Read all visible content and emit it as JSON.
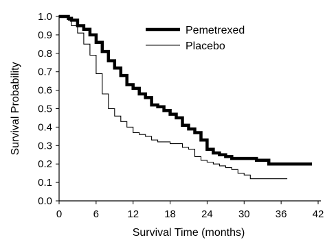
{
  "chart_data": {
    "type": "line",
    "title": "",
    "xlabel": "Survival Time (months)",
    "ylabel": "Survival Probability",
    "xlim": [
      0,
      42
    ],
    "ylim": [
      0,
      1.0
    ],
    "x_ticks": [
      "0",
      "6",
      "12",
      "18",
      "24",
      "30",
      "36",
      "42"
    ],
    "y_ticks": [
      "0.0",
      "0.1",
      "0.2",
      "0.3",
      "0.4",
      "0.5",
      "0.6",
      "0.7",
      "0.8",
      "0.9",
      "1.0"
    ],
    "grid": false,
    "legend_position": "top-right",
    "step": true,
    "series": [
      {
        "name": "Pemetrexed",
        "color": "#000000",
        "style": "thick",
        "points": [
          [
            0,
            1.0
          ],
          [
            1,
            1.0
          ],
          [
            1.5,
            0.99
          ],
          [
            2,
            0.98
          ],
          [
            3,
            0.95
          ],
          [
            4,
            0.93
          ],
          [
            5,
            0.9
          ],
          [
            6,
            0.86
          ],
          [
            7,
            0.81
          ],
          [
            8,
            0.76
          ],
          [
            9,
            0.72
          ],
          [
            10,
            0.68
          ],
          [
            11,
            0.63
          ],
          [
            12,
            0.61
          ],
          [
            13,
            0.58
          ],
          [
            14,
            0.56
          ],
          [
            15,
            0.52
          ],
          [
            16,
            0.51
          ],
          [
            17,
            0.49
          ],
          [
            18,
            0.47
          ],
          [
            19,
            0.45
          ],
          [
            20,
            0.41
          ],
          [
            21,
            0.39
          ],
          [
            22,
            0.37
          ],
          [
            23,
            0.33
          ],
          [
            24,
            0.28
          ],
          [
            25,
            0.26
          ],
          [
            26,
            0.25
          ],
          [
            27,
            0.24
          ],
          [
            28,
            0.23
          ],
          [
            30,
            0.23
          ],
          [
            32,
            0.22
          ],
          [
            34,
            0.2
          ],
          [
            36,
            0.2
          ],
          [
            38,
            0.2
          ],
          [
            40,
            0.2
          ],
          [
            41,
            0.2
          ]
        ]
      },
      {
        "name": "Placebo",
        "color": "#000000",
        "style": "thin",
        "points": [
          [
            0,
            1.0
          ],
          [
            1,
            1.0
          ],
          [
            1.5,
            0.98
          ],
          [
            2,
            0.95
          ],
          [
            3,
            0.91
          ],
          [
            4,
            0.85
          ],
          [
            5,
            0.79
          ],
          [
            6,
            0.69
          ],
          [
            7,
            0.58
          ],
          [
            8,
            0.5
          ],
          [
            9,
            0.46
          ],
          [
            10,
            0.43
          ],
          [
            11,
            0.4
          ],
          [
            12,
            0.37
          ],
          [
            13,
            0.36
          ],
          [
            14,
            0.35
          ],
          [
            15,
            0.33
          ],
          [
            16,
            0.32
          ],
          [
            18,
            0.31
          ],
          [
            20,
            0.29
          ],
          [
            21,
            0.28
          ],
          [
            22,
            0.24
          ],
          [
            23,
            0.22
          ],
          [
            24,
            0.21
          ],
          [
            25,
            0.2
          ],
          [
            26,
            0.19
          ],
          [
            27,
            0.18
          ],
          [
            28,
            0.17
          ],
          [
            29,
            0.15
          ],
          [
            30,
            0.14
          ],
          [
            31,
            0.12
          ],
          [
            33,
            0.12
          ],
          [
            35,
            0.12
          ],
          [
            37,
            0.12
          ]
        ]
      }
    ]
  }
}
